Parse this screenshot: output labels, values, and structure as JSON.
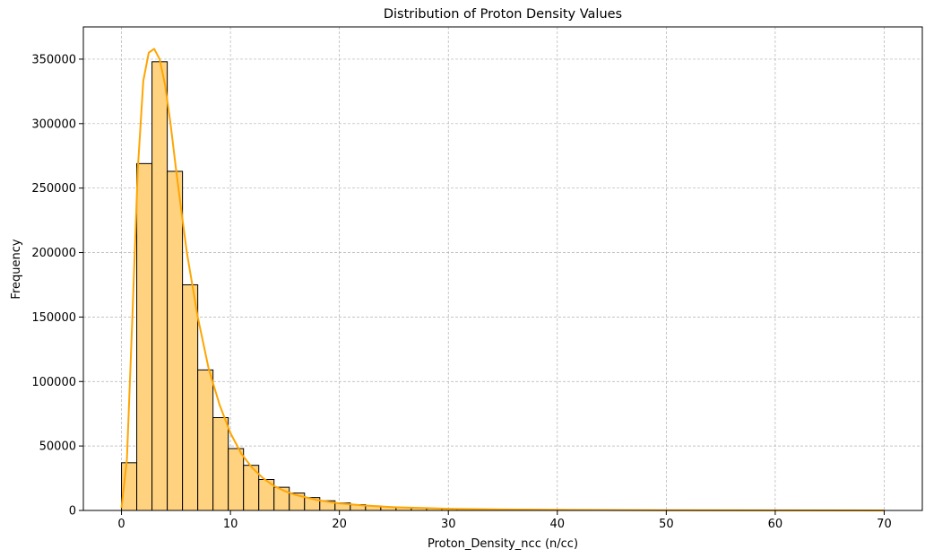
{
  "chart_data": {
    "type": "bar",
    "title": "Distribution of Proton Density Values",
    "xlabel": "Proton_Density_ncc (n/cc)",
    "ylabel": "Frequency",
    "xlim": [
      -3.5,
      73.5
    ],
    "ylim": [
      0,
      375000
    ],
    "xticks": [
      0,
      10,
      20,
      30,
      40,
      50,
      60,
      70
    ],
    "yticks": [
      0,
      50000,
      100000,
      150000,
      200000,
      250000,
      300000,
      350000
    ],
    "grid": true,
    "bin_width": 1.4,
    "bin_start": 0,
    "values": [
      37000,
      269000,
      348000,
      263000,
      175000,
      109000,
      72000,
      48000,
      35000,
      24000,
      18000,
      13500,
      10000,
      7500,
      5800,
      4500,
      3500,
      2800,
      2200,
      1800,
      1450,
      1200,
      1000,
      850,
      700,
      600,
      500,
      450,
      400,
      350,
      300,
      260,
      230,
      200,
      180,
      160,
      140,
      120,
      110,
      100,
      90,
      80,
      70,
      65,
      60,
      55,
      50,
      45,
      40,
      35
    ],
    "series": [
      {
        "name": "",
        "type": "line",
        "x": [
          0,
          0.5,
          1,
          1.5,
          2,
          2.5,
          3,
          3.5,
          4,
          4.5,
          5,
          5.5,
          6,
          7,
          8,
          9,
          10,
          11,
          12,
          13,
          14,
          15,
          16,
          18,
          20,
          22,
          25,
          28,
          30,
          35,
          40,
          50,
          60,
          70
        ],
        "values": [
          2000,
          40000,
          150000,
          265000,
          333000,
          355000,
          358000,
          350000,
          330000,
          300000,
          265000,
          232000,
          200000,
          150000,
          110000,
          82000,
          60000,
          44000,
          33000,
          25000,
          19000,
          15000,
          12000,
          8000,
          5500,
          4000,
          2500,
          1800,
          1300,
          800,
          500,
          200,
          100,
          0
        ]
      }
    ],
    "colors": {
      "bar_fill": "#ffd280",
      "bar_edge": "#000000",
      "kde_line": "#ffa500",
      "grid": "#b0b0b0"
    }
  }
}
